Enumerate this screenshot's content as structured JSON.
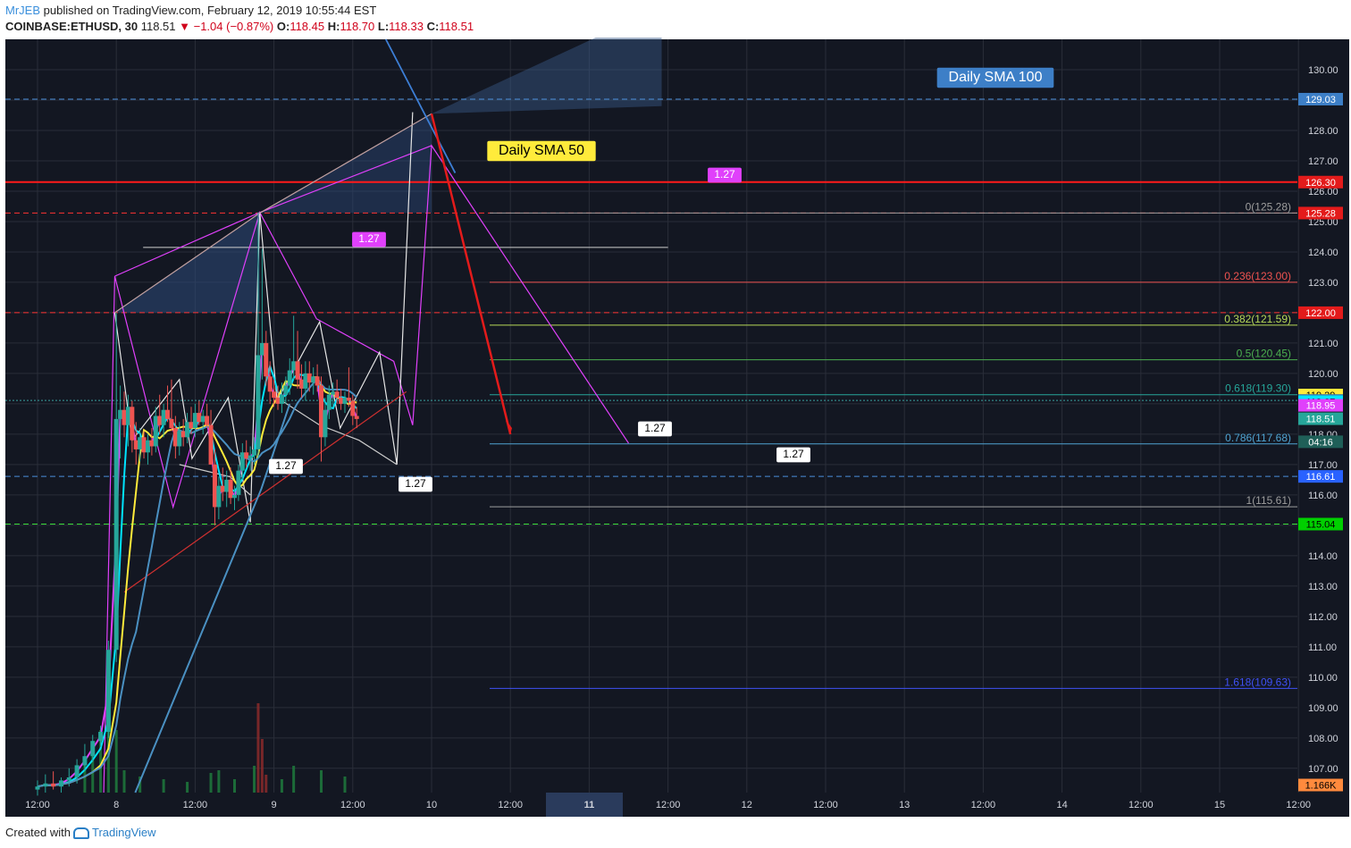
{
  "header": {
    "user": "MrJEB",
    "published": "published on TradingView.com, February 12, 2019 10:55:44 EST",
    "symbol": "COINBASE:ETHUSD, 30",
    "last": "118.51",
    "change": "▼ −1.04 (−0.87%)",
    "o_label": "O:",
    "o_val": "118.45",
    "h_label": "H:",
    "h_val": "118.70",
    "l_label": "L:",
    "l_val": "118.33",
    "c_label": "C:",
    "c_val": "118.51"
  },
  "footer": {
    "created": "Created with",
    "brand": "TradingView"
  },
  "colors": {
    "bg": "#131722",
    "grid": "#2a2e39",
    "up": "#26a69a",
    "down": "#ef5350",
    "magenta": "#e040fb",
    "cyan": "#00e5ff",
    "yellow": "#ffeb3b",
    "steel": "#4a90c2",
    "red_level": "#ff1a1a",
    "white_line": "#e6e6e6"
  },
  "chart_data": {
    "type": "candlestick",
    "symbol": "ETHUSD",
    "timeframe": "30",
    "ylim": [
      106.2,
      131.0
    ],
    "y_ticks": [
      107,
      108,
      109,
      110,
      111,
      112,
      113,
      114,
      115,
      116,
      117,
      118,
      119,
      120,
      121,
      122,
      123,
      124,
      125,
      126,
      127,
      128,
      129,
      130
    ],
    "x_ticks": [
      "12:00",
      "8",
      "12:00",
      "9",
      "12:00",
      "10",
      "12:00",
      "11",
      "12:00",
      "12",
      "12:00",
      "13",
      "12:00",
      "14",
      "12:00",
      "15",
      "12:00"
    ],
    "price_tags": [
      {
        "label": "129.03",
        "value": 129.03,
        "bg": "#3d7fc7",
        "fg": "#ffffff"
      },
      {
        "label": "126.30",
        "value": 126.3,
        "bg": "#e31b1b",
        "fg": "#ffffff"
      },
      {
        "label": "125.28",
        "value": 125.28,
        "bg": "#e31b1b",
        "fg": "#ffffff"
      },
      {
        "label": "122.00",
        "value": 122.0,
        "bg": "#e31b1b",
        "fg": "#ffffff"
      },
      {
        "label": "119.29",
        "value": 119.29,
        "bg": "#ffeb3b",
        "fg": "#000000"
      },
      {
        "label": "119.11",
        "value": 119.11,
        "bg": "#3b78b0",
        "fg": "#ffffff"
      },
      {
        "label": "119.07",
        "value": 119.07,
        "bg": "#00e5ff",
        "fg": "#000000"
      },
      {
        "label": "118.95",
        "value": 118.95,
        "bg": "#e040fb",
        "fg": "#ffffff"
      },
      {
        "label": "118.51",
        "value": 118.51,
        "bg": "#26a69a",
        "fg": "#ffffff"
      },
      {
        "label": "04:16",
        "value": 117.75,
        "bg": "#1f5f58",
        "fg": "#ffffff"
      },
      {
        "label": "116.61",
        "value": 116.61,
        "bg": "#2962ff",
        "fg": "#ffffff"
      },
      {
        "label": "115.04",
        "value": 115.04,
        "bg": "#00d000",
        "fg": "#000000"
      },
      {
        "label": "1.166K",
        "value": 106.45,
        "bg": "#ff8a3d",
        "fg": "#000000"
      }
    ],
    "fib_levels": [
      {
        "label": "0(125.28)",
        "value": 125.28,
        "color": "#9e9e9e"
      },
      {
        "label": "0.236(123.00)",
        "value": 123.0,
        "color": "#ef5350"
      },
      {
        "label": "0.382(121.59)",
        "value": 121.59,
        "color": "#b7d957"
      },
      {
        "label": "0.5(120.45)",
        "value": 120.45,
        "color": "#4caf50"
      },
      {
        "label": "0.618(119.30)",
        "value": 119.3,
        "color": "#26a69a"
      },
      {
        "label": "0.786(117.68)",
        "value": 117.68,
        "color": "#4fa3d1"
      },
      {
        "label": "1(115.61)",
        "value": 115.61,
        "color": "#9e9e9e"
      },
      {
        "label": "1.618(109.63)",
        "value": 109.63,
        "color": "#3f51f5"
      }
    ],
    "annotations": [
      {
        "text": "Daily SMA 50",
        "style": "yellow"
      },
      {
        "text": "Daily SMA 100",
        "style": "blue"
      },
      {
        "text": "1.27",
        "style": "magenta"
      },
      {
        "text": "1.27",
        "style": "magenta"
      },
      {
        "text": "1.27",
        "style": "white"
      },
      {
        "text": "1.27",
        "style": "white"
      },
      {
        "text": "1.27",
        "style": "white"
      },
      {
        "text": "1.27",
        "style": "white"
      }
    ],
    "horizontal_levels": [
      129.03,
      126.3,
      125.28,
      122.0,
      116.61,
      115.04,
      119.11
    ],
    "price_series": [
      {
        "t": 0.0,
        "o": 106.3,
        "h": 106.6,
        "l": 106.1,
        "c": 106.4
      },
      {
        "t": 0.1,
        "o": 106.4,
        "h": 106.8,
        "l": 106.2,
        "c": 106.5
      },
      {
        "t": 0.2,
        "o": 106.5,
        "h": 106.9,
        "l": 106.3,
        "c": 106.4
      },
      {
        "t": 0.3,
        "o": 106.4,
        "h": 106.7,
        "l": 106.2,
        "c": 106.6
      },
      {
        "t": 0.4,
        "o": 106.6,
        "h": 107.0,
        "l": 106.4,
        "c": 106.7
      },
      {
        "t": 0.5,
        "o": 106.7,
        "h": 107.3,
        "l": 106.5,
        "c": 107.1
      },
      {
        "t": 0.6,
        "o": 107.1,
        "h": 107.8,
        "l": 106.9,
        "c": 107.4
      },
      {
        "t": 0.7,
        "o": 107.4,
        "h": 108.1,
        "l": 107.2,
        "c": 107.9
      },
      {
        "t": 0.8,
        "o": 107.9,
        "h": 108.4,
        "l": 107.7,
        "c": 108.2
      },
      {
        "t": 0.9,
        "o": 108.2,
        "h": 111.2,
        "l": 108.0,
        "c": 110.9
      },
      {
        "t": 1.0,
        "o": 110.9,
        "h": 122.0,
        "l": 110.5,
        "c": 118.5
      },
      {
        "t": 1.05,
        "o": 118.5,
        "h": 119.6,
        "l": 117.2,
        "c": 118.8
      },
      {
        "t": 1.1,
        "o": 118.8,
        "h": 119.4,
        "l": 117.9,
        "c": 118.3
      },
      {
        "t": 1.15,
        "o": 118.3,
        "h": 119.3,
        "l": 117.6,
        "c": 118.9
      },
      {
        "t": 1.2,
        "o": 118.9,
        "h": 119.1,
        "l": 117.4,
        "c": 117.8
      },
      {
        "t": 1.25,
        "o": 117.8,
        "h": 118.4,
        "l": 117.0,
        "c": 117.5
      },
      {
        "t": 1.3,
        "o": 117.5,
        "h": 118.2,
        "l": 117.1,
        "c": 117.9
      },
      {
        "t": 1.35,
        "o": 117.9,
        "h": 118.1,
        "l": 117.2,
        "c": 117.4
      },
      {
        "t": 1.4,
        "o": 117.4,
        "h": 118.0,
        "l": 117.0,
        "c": 117.8
      },
      {
        "t": 1.45,
        "o": 117.8,
        "h": 118.2,
        "l": 117.3,
        "c": 117.6
      },
      {
        "t": 1.5,
        "o": 117.6,
        "h": 118.9,
        "l": 117.4,
        "c": 118.6
      },
      {
        "t": 1.55,
        "o": 118.6,
        "h": 119.3,
        "l": 118.0,
        "c": 118.3
      },
      {
        "t": 1.6,
        "o": 118.3,
        "h": 119.0,
        "l": 117.9,
        "c": 118.8
      },
      {
        "t": 1.65,
        "o": 118.8,
        "h": 119.6,
        "l": 118.4,
        "c": 118.5
      },
      {
        "t": 1.7,
        "o": 118.5,
        "h": 119.8,
        "l": 118.1,
        "c": 118.2
      },
      {
        "t": 1.75,
        "o": 118.2,
        "h": 118.6,
        "l": 117.2,
        "c": 117.6
      },
      {
        "t": 1.8,
        "o": 117.6,
        "h": 118.4,
        "l": 117.3,
        "c": 118.1
      },
      {
        "t": 1.85,
        "o": 118.1,
        "h": 118.5,
        "l": 117.6,
        "c": 117.9
      },
      {
        "t": 1.9,
        "o": 117.9,
        "h": 118.7,
        "l": 117.7,
        "c": 118.4
      },
      {
        "t": 1.95,
        "o": 118.4,
        "h": 118.9,
        "l": 118.0,
        "c": 118.2
      },
      {
        "t": 2.0,
        "o": 118.2,
        "h": 119.0,
        "l": 117.9,
        "c": 118.7
      },
      {
        "t": 2.05,
        "o": 118.7,
        "h": 119.1,
        "l": 118.3,
        "c": 118.4
      },
      {
        "t": 2.1,
        "o": 118.4,
        "h": 118.8,
        "l": 118.0,
        "c": 118.6
      },
      {
        "t": 2.15,
        "o": 118.6,
        "h": 119.0,
        "l": 118.2,
        "c": 118.3
      },
      {
        "t": 2.2,
        "o": 118.3,
        "h": 118.8,
        "l": 117.2,
        "c": 117.0
      },
      {
        "t": 2.25,
        "o": 117.0,
        "h": 117.5,
        "l": 115.0,
        "c": 115.6
      },
      {
        "t": 2.3,
        "o": 115.6,
        "h": 116.6,
        "l": 115.2,
        "c": 116.3
      },
      {
        "t": 2.35,
        "o": 116.3,
        "h": 116.9,
        "l": 115.8,
        "c": 116.1
      },
      {
        "t": 2.4,
        "o": 116.1,
        "h": 116.8,
        "l": 115.6,
        "c": 116.5
      },
      {
        "t": 2.45,
        "o": 116.5,
        "h": 116.9,
        "l": 115.7,
        "c": 115.9
      },
      {
        "t": 2.5,
        "o": 115.9,
        "h": 116.3,
        "l": 115.5,
        "c": 116.0
      },
      {
        "t": 2.55,
        "o": 116.0,
        "h": 117.0,
        "l": 115.8,
        "c": 116.8
      },
      {
        "t": 2.6,
        "o": 116.8,
        "h": 117.7,
        "l": 116.5,
        "c": 117.4
      },
      {
        "t": 2.65,
        "o": 117.4,
        "h": 117.8,
        "l": 116.9,
        "c": 117.2
      },
      {
        "t": 2.7,
        "o": 117.2,
        "h": 117.6,
        "l": 116.8,
        "c": 117.3
      },
      {
        "t": 2.75,
        "o": 117.3,
        "h": 117.9,
        "l": 117.0,
        "c": 117.5
      },
      {
        "t": 2.8,
        "o": 117.5,
        "h": 125.3,
        "l": 117.2,
        "c": 120.6
      },
      {
        "t": 2.85,
        "o": 120.6,
        "h": 124.1,
        "l": 119.8,
        "c": 121.0
      },
      {
        "t": 2.9,
        "o": 121.0,
        "h": 121.4,
        "l": 119.6,
        "c": 119.9
      },
      {
        "t": 2.95,
        "o": 119.9,
        "h": 120.4,
        "l": 119.0,
        "c": 119.4
      },
      {
        "t": 3.0,
        "o": 119.4,
        "h": 119.8,
        "l": 118.9,
        "c": 119.2
      },
      {
        "t": 3.05,
        "o": 119.2,
        "h": 119.6,
        "l": 118.8,
        "c": 119.0
      },
      {
        "t": 3.1,
        "o": 119.0,
        "h": 119.7,
        "l": 118.7,
        "c": 119.3
      },
      {
        "t": 3.15,
        "o": 119.3,
        "h": 119.9,
        "l": 119.0,
        "c": 119.6
      },
      {
        "t": 3.2,
        "o": 119.6,
        "h": 120.5,
        "l": 119.3,
        "c": 120.1
      },
      {
        "t": 3.25,
        "o": 120.1,
        "h": 121.9,
        "l": 119.8,
        "c": 120.4
      },
      {
        "t": 3.3,
        "o": 120.4,
        "h": 121.4,
        "l": 119.5,
        "c": 119.8
      },
      {
        "t": 3.35,
        "o": 119.8,
        "h": 120.3,
        "l": 119.2,
        "c": 119.5
      },
      {
        "t": 3.4,
        "o": 119.5,
        "h": 120.4,
        "l": 119.1,
        "c": 120.0
      },
      {
        "t": 3.45,
        "o": 120.0,
        "h": 120.4,
        "l": 119.4,
        "c": 119.7
      },
      {
        "t": 3.5,
        "o": 119.7,
        "h": 120.2,
        "l": 119.3,
        "c": 119.9
      },
      {
        "t": 3.55,
        "o": 119.9,
        "h": 120.3,
        "l": 119.4,
        "c": 119.6
      },
      {
        "t": 3.6,
        "o": 119.6,
        "h": 119.9,
        "l": 117.1,
        "c": 117.9
      },
      {
        "t": 3.65,
        "o": 117.9,
        "h": 119.2,
        "l": 117.6,
        "c": 118.8
      },
      {
        "t": 3.7,
        "o": 118.8,
        "h": 119.6,
        "l": 118.5,
        "c": 119.3
      },
      {
        "t": 3.75,
        "o": 119.3,
        "h": 119.7,
        "l": 118.9,
        "c": 119.4
      },
      {
        "t": 3.8,
        "o": 119.4,
        "h": 119.8,
        "l": 119.0,
        "c": 119.2
      },
      {
        "t": 3.85,
        "o": 119.2,
        "h": 119.5,
        "l": 118.8,
        "c": 119.0
      },
      {
        "t": 3.9,
        "o": 119.0,
        "h": 119.4,
        "l": 118.7,
        "c": 119.2
      },
      {
        "t": 3.95,
        "o": 119.2,
        "h": 120.2,
        "l": 118.9,
        "c": 119.1
      },
      {
        "t": 4.0,
        "o": 119.1,
        "h": 119.3,
        "l": 118.3,
        "c": 118.6
      },
      {
        "t": 4.05,
        "o": 118.6,
        "h": 118.9,
        "l": 118.2,
        "c": 118.5
      }
    ],
    "volume": [
      {
        "t": 0.6,
        "v": 0.4
      },
      {
        "t": 0.7,
        "v": 0.55
      },
      {
        "t": 0.8,
        "v": 0.7
      },
      {
        "t": 0.9,
        "v": 0.95
      },
      {
        "t": 1.0,
        "v": 0.7
      },
      {
        "t": 1.1,
        "v": 0.25
      },
      {
        "t": 1.3,
        "v": 0.18
      },
      {
        "t": 1.6,
        "v": 0.15
      },
      {
        "t": 1.9,
        "v": 0.12
      },
      {
        "t": 2.2,
        "v": 0.22
      },
      {
        "t": 2.3,
        "v": 0.25
      },
      {
        "t": 2.5,
        "v": 0.15
      },
      {
        "t": 2.75,
        "v": 0.3
      },
      {
        "t": 2.8,
        "v": 1.0
      },
      {
        "t": 2.85,
        "v": 0.6
      },
      {
        "t": 2.9,
        "v": 0.2
      },
      {
        "t": 3.1,
        "v": 0.15
      },
      {
        "t": 3.25,
        "v": 0.3
      },
      {
        "t": 3.6,
        "v": 0.25
      },
      {
        "t": 3.9,
        "v": 0.18
      }
    ]
  }
}
